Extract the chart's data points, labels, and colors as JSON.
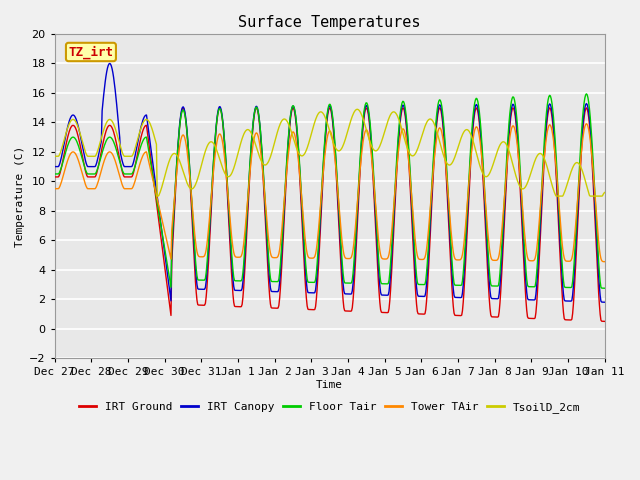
{
  "title": "Surface Temperatures",
  "xlabel": "Time",
  "ylabel": "Temperature (C)",
  "ylim": [
    -2,
    20
  ],
  "fig_bg": "#f0f0f0",
  "plot_bg": "#e8e8e8",
  "legend_entries": [
    "IRT Ground",
    "IRT Canopy",
    "Floor Tair",
    "Tower TAir",
    "TsoilD_2cm"
  ],
  "legend_colors": [
    "#dd0000",
    "#0000cc",
    "#00cc00",
    "#ff8800",
    "#cccc00"
  ],
  "annotation_text": "TZ_irt",
  "annotation_color": "#cc0000",
  "annotation_bg": "#ffffaa",
  "annotation_border": "#cc9900",
  "x_tick_labels": [
    "Dec 27",
    "Dec 28",
    "Dec 29",
    "Dec 30",
    "Dec 31",
    "Jan 1",
    "Jan 2",
    "Jan 3",
    "Jan 4",
    "Jan 5",
    "Jan 6",
    "Jan 7",
    "Jan 8",
    "Jan 9",
    "Jan 10",
    "Jan 11"
  ],
  "title_fontsize": 11,
  "axis_label_fontsize": 8,
  "tick_fontsize": 8,
  "legend_fontsize": 8
}
